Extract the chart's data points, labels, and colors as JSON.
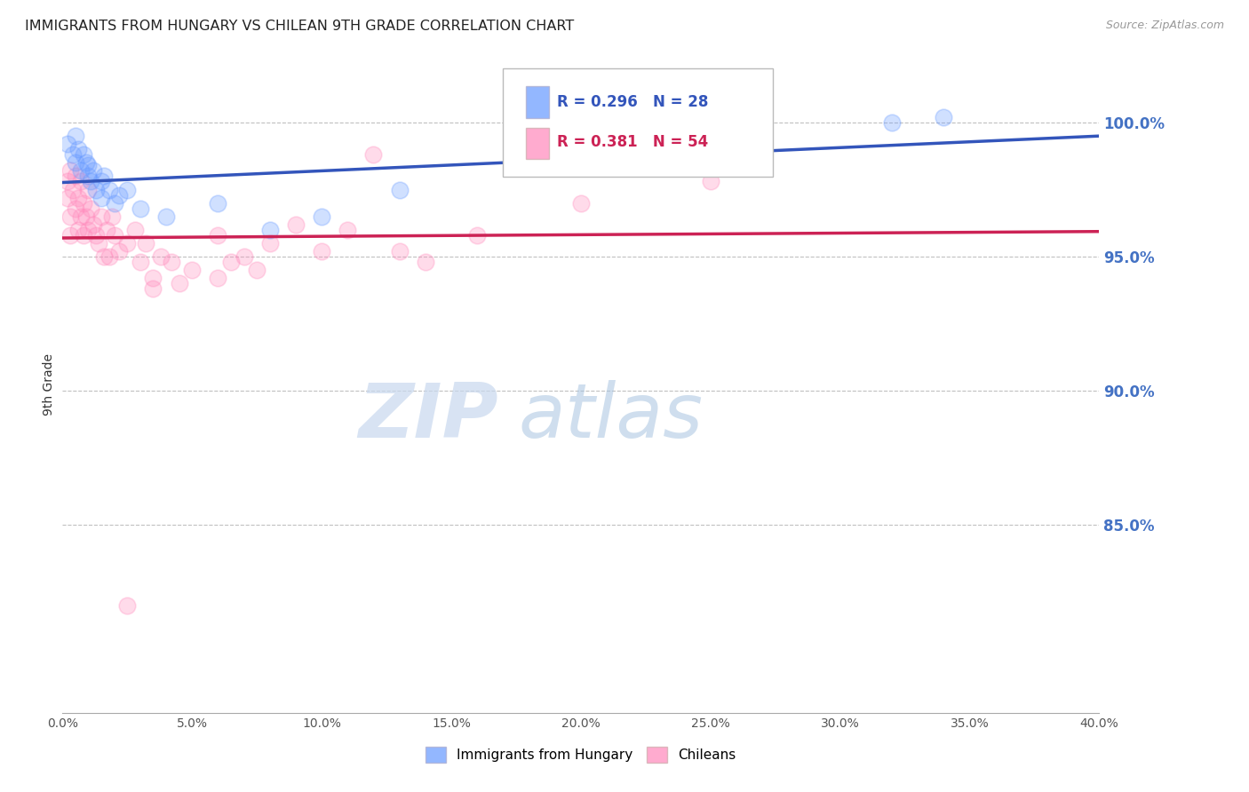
{
  "title": "IMMIGRANTS FROM HUNGARY VS CHILEAN 9TH GRADE CORRELATION CHART",
  "source": "Source: ZipAtlas.com",
  "ylabel": "9th Grade",
  "xlim": [
    0.0,
    0.4
  ],
  "ylim": [
    0.78,
    1.025
  ],
  "xtick_labels": [
    "0.0%",
    "5.0%",
    "10.0%",
    "15.0%",
    "20.0%",
    "25.0%",
    "30.0%",
    "35.0%",
    "40.0%"
  ],
  "xtick_values": [
    0.0,
    0.05,
    0.1,
    0.15,
    0.2,
    0.25,
    0.3,
    0.35,
    0.4
  ],
  "ytick_labels": [
    "100.0%",
    "95.0%",
    "90.0%",
    "85.0%"
  ],
  "ytick_values": [
    1.0,
    0.95,
    0.9,
    0.85
  ],
  "right_axis_color": "#4472c4",
  "grid_color": "#c0c0c0",
  "blue_color": "#6699ff",
  "pink_color": "#ff88bb",
  "blue_line_color": "#3355bb",
  "pink_line_color": "#cc2255",
  "legend_blue_label": "Immigrants from Hungary",
  "legend_pink_label": "Chileans",
  "R_blue": 0.296,
  "N_blue": 28,
  "R_pink": 0.381,
  "N_pink": 54,
  "blue_x": [
    0.002,
    0.004,
    0.005,
    0.005,
    0.006,
    0.007,
    0.008,
    0.009,
    0.01,
    0.01,
    0.011,
    0.012,
    0.013,
    0.015,
    0.015,
    0.016,
    0.018,
    0.02,
    0.022,
    0.025,
    0.03,
    0.04,
    0.06,
    0.08,
    0.1,
    0.13,
    0.32,
    0.34
  ],
  "blue_y": [
    0.992,
    0.988,
    0.995,
    0.985,
    0.99,
    0.982,
    0.988,
    0.985,
    0.984,
    0.98,
    0.978,
    0.982,
    0.975,
    0.978,
    0.972,
    0.98,
    0.975,
    0.97,
    0.973,
    0.975,
    0.968,
    0.965,
    0.97,
    0.96,
    0.965,
    0.975,
    1.0,
    1.002
  ],
  "pink_x": [
    0.002,
    0.002,
    0.003,
    0.003,
    0.004,
    0.005,
    0.005,
    0.006,
    0.006,
    0.007,
    0.007,
    0.008,
    0.008,
    0.009,
    0.01,
    0.01,
    0.011,
    0.012,
    0.013,
    0.014,
    0.015,
    0.016,
    0.017,
    0.018,
    0.019,
    0.02,
    0.022,
    0.025,
    0.028,
    0.03,
    0.032,
    0.035,
    0.038,
    0.042,
    0.045,
    0.05,
    0.06,
    0.065,
    0.07,
    0.075,
    0.08,
    0.09,
    0.1,
    0.11,
    0.12,
    0.13,
    0.14,
    0.16,
    0.2,
    0.25,
    0.003,
    0.035,
    0.06,
    0.025
  ],
  "pink_y": [
    0.978,
    0.972,
    0.982,
    0.965,
    0.975,
    0.98,
    0.968,
    0.972,
    0.96,
    0.978,
    0.965,
    0.97,
    0.958,
    0.965,
    0.975,
    0.96,
    0.968,
    0.962,
    0.958,
    0.955,
    0.965,
    0.95,
    0.96,
    0.95,
    0.965,
    0.958,
    0.952,
    0.955,
    0.96,
    0.948,
    0.955,
    0.942,
    0.95,
    0.948,
    0.94,
    0.945,
    0.958,
    0.948,
    0.95,
    0.945,
    0.955,
    0.962,
    0.952,
    0.96,
    0.988,
    0.952,
    0.948,
    0.958,
    0.97,
    0.978,
    0.958,
    0.938,
    0.942,
    0.82
  ],
  "watermark_zip": "ZIP",
  "watermark_atlas": "atlas",
  "marker_size": 180,
  "marker_alpha": 0.3
}
